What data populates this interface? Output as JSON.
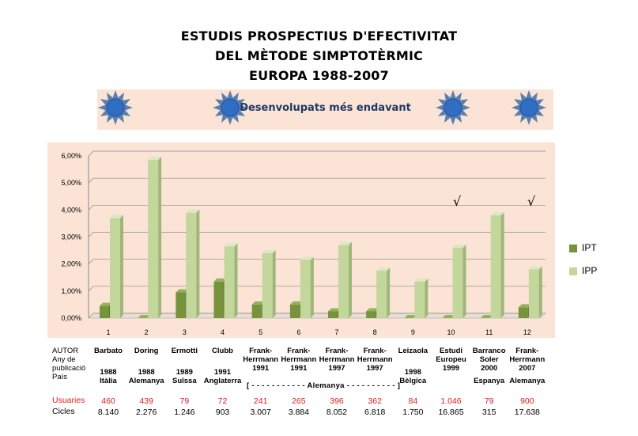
{
  "title": {
    "line1": "ESTUDIS PROSPECTIUS D'EFECTIVITAT",
    "line2": "DEL MÈTODE SIMPTOTÈRMIC",
    "line3": "EUROPA 1988-2007"
  },
  "banner": {
    "text": "Desenvolupats més endavant",
    "icon": "sun-icon"
  },
  "colors": {
    "ipt": "#77933c",
    "ipp": "#c3d69b",
    "panel": "#fbe4d5",
    "usuaries": "#e21b1b"
  },
  "chart_data": {
    "type": "bar",
    "categories": [
      "1",
      "2",
      "3",
      "4",
      "5",
      "6",
      "7",
      "8",
      "9",
      "10",
      "11",
      "12"
    ],
    "series": [
      {
        "name": "IPT",
        "values": [
          0.45,
          0.0,
          0.95,
          1.35,
          0.5,
          0.5,
          0.25,
          0.25,
          0.0,
          0.0,
          0.0,
          0.4
        ]
      },
      {
        "name": "IPP",
        "values": [
          3.7,
          5.85,
          3.9,
          2.65,
          2.4,
          2.15,
          2.7,
          1.75,
          1.35,
          2.6,
          3.8,
          1.8
        ]
      }
    ],
    "yticks": [
      "0,00%",
      "1,00%",
      "2,00%",
      "3,00%",
      "4,00%",
      "5,00%",
      "6,00%"
    ],
    "ylim": [
      0,
      6
    ],
    "grid": true,
    "legend": "right",
    "checkmarks": [
      "√",
      "√"
    ]
  },
  "table": {
    "row_labels": {
      "autor": "AUTOR",
      "any1": "Any de",
      "any2": "publicació",
      "pais": "País",
      "usuaries": "Usuaries",
      "cicles": "Cicles"
    },
    "authors": [
      [
        "Barbato"
      ],
      [
        "Doring"
      ],
      [
        "Ermotti"
      ],
      [
        "Clubb"
      ],
      [
        "Frank-",
        "Herrmann",
        "1991"
      ],
      [
        "Frank-",
        "Herrmann",
        "1991"
      ],
      [
        "Frank-",
        "Herrmann",
        "1997"
      ],
      [
        "Frank-",
        "Herrmann",
        "1997"
      ],
      [
        "Leizaola"
      ],
      [
        "Estudi",
        "Europeu",
        "1999"
      ],
      [
        "Barranco",
        "Soler",
        "2000"
      ],
      [
        "Frank-",
        "Herrmann",
        "2007"
      ]
    ],
    "years": [
      "1988",
      "1988",
      "1989",
      "1991",
      "",
      "",
      "",
      "",
      "1998",
      "",
      "",
      ""
    ],
    "countries": [
      "Itàlia",
      "Alemanya",
      "Suïssa",
      "Anglaterra",
      "",
      "",
      "",
      "",
      "Bèlgica",
      "",
      "Espanya",
      "Alemanya"
    ],
    "germany_span": "[ - - - - - - - - - - - Alemanya - - - - - - - - - - ]",
    "usuaries": [
      "460",
      "439",
      "79",
      "72",
      "241",
      "265",
      "396",
      "362",
      "84",
      "1.046",
      "79",
      "900"
    ],
    "cicles": [
      "8.140",
      "2.276",
      "1.246",
      "903",
      "3.007",
      "3.884",
      "8.052",
      "6.818",
      "1.750",
      "16.865",
      "315",
      "17.638"
    ]
  }
}
